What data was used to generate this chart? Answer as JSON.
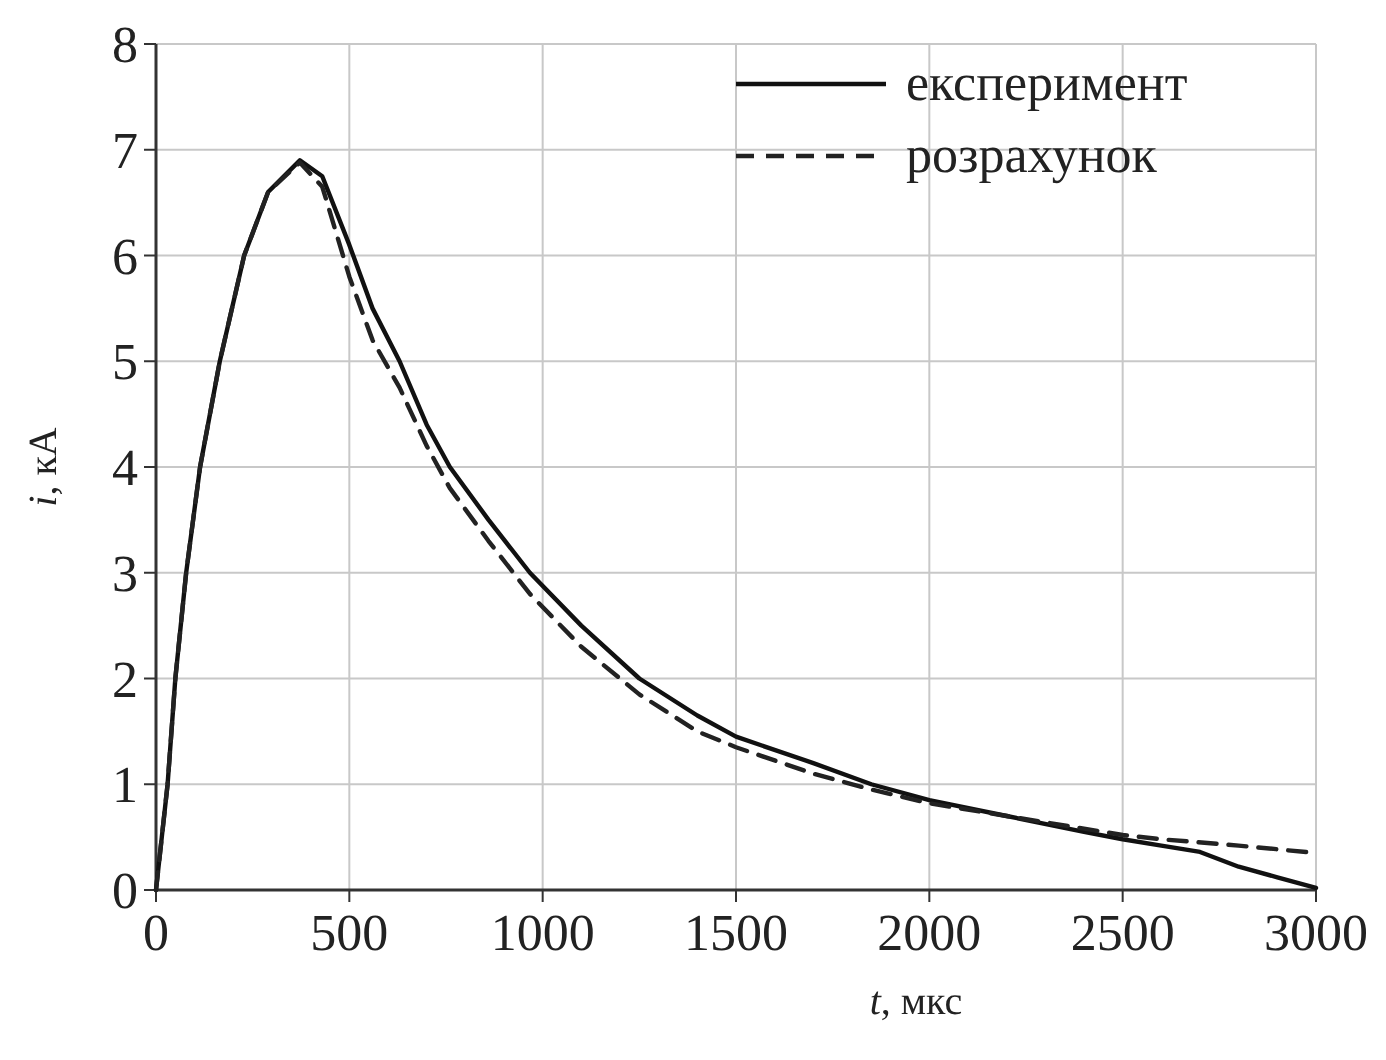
{
  "chart_data": {
    "type": "line",
    "xlabel": "t, мкс",
    "ylabel": "i, кА",
    "xlim": [
      0,
      3000
    ],
    "ylim": [
      0,
      8
    ],
    "xticks": [
      0,
      500,
      1000,
      1500,
      2000,
      2500,
      3000
    ],
    "yticks": [
      0,
      1,
      2,
      3,
      4,
      5,
      6,
      7,
      8
    ],
    "grid": true,
    "legend": "top right",
    "series": [
      {
        "name": "експеримент",
        "color": "#111111",
        "line_style": "solid",
        "x": [
          0,
          15,
          30,
          50,
          78,
          114,
          165,
          228,
          290,
          372,
          430,
          500,
          560,
          630,
          700,
          760,
          860,
          967,
          1100,
          1250,
          1400,
          1500,
          1700,
          1850,
          2000,
          2200,
          2400,
          2500,
          2600,
          2700,
          2800,
          2900,
          3000
        ],
        "values": [
          0,
          0.5,
          1,
          2,
          3,
          4,
          5,
          6,
          6.6,
          6.9,
          6.75,
          6.1,
          5.5,
          5,
          4.4,
          4,
          3.5,
          3,
          2.5,
          2,
          1.65,
          1.45,
          1.2,
          1.0,
          0.85,
          0.7,
          0.55,
          0.48,
          0.42,
          0.36,
          0.22,
          0.12,
          0.02
        ]
      },
      {
        "name": "розрахунок",
        "color": "#222222",
        "line_style": "dashed",
        "x": [
          0,
          15,
          30,
          50,
          78,
          114,
          165,
          228,
          290,
          372,
          430,
          500,
          560,
          630,
          700,
          760,
          860,
          967,
          1100,
          1250,
          1400,
          1500,
          1700,
          1850,
          2000,
          2200,
          2400,
          2500,
          2600,
          2800,
          3000
        ],
        "values": [
          0,
          0.5,
          1,
          2,
          3,
          4,
          5,
          6,
          6.6,
          6.88,
          6.65,
          5.8,
          5.2,
          4.75,
          4.2,
          3.8,
          3.3,
          2.8,
          2.3,
          1.85,
          1.5,
          1.35,
          1.1,
          0.95,
          0.82,
          0.7,
          0.58,
          0.52,
          0.48,
          0.42,
          0.35
        ]
      }
    ]
  }
}
